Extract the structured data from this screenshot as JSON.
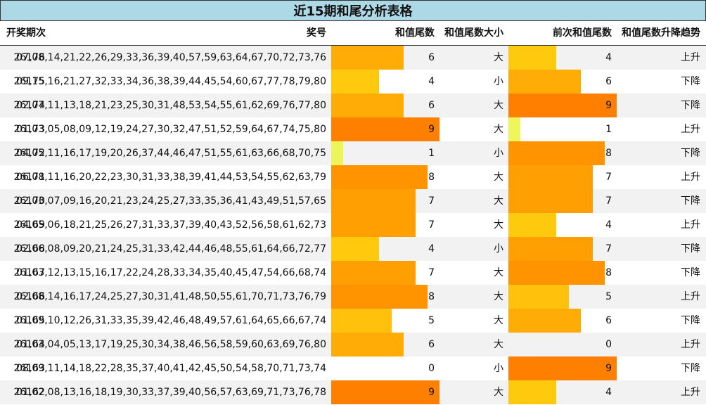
{
  "title": "近15期和尾分析表格",
  "headers": {
    "period": "开奖期次",
    "numbers": "奖号",
    "tail": "和值尾数",
    "size": "和值尾数大小",
    "prev_tail": "前次和值尾数",
    "trend": "和值尾数升降趋势"
  },
  "colors": {
    "0": "#ffffff",
    "1": "#eef55a",
    "4": "#ffc90e",
    "5": "#ffc10c",
    "6": "#ffad06",
    "7": "#ff9f02",
    "8": "#ff9400",
    "9": "#ff8000"
  },
  "rows": [
    {
      "period": "26176",
      "numbers": "07,08,14,21,22,26,29,33,36,39,40,57,59,63,64,67,70,72,73,76",
      "tail": 6,
      "size": "大",
      "prev_tail": 4,
      "trend": "上升"
    },
    {
      "period": "26175",
      "numbers": "09,15,16,21,27,32,33,34,36,38,39,44,45,54,60,67,77,78,79,80",
      "tail": 4,
      "size": "小",
      "prev_tail": 6,
      "trend": "下降"
    },
    {
      "period": "26174",
      "numbers": "02,07,11,13,18,21,23,25,30,31,48,53,54,55,61,62,69,76,77,80",
      "tail": 6,
      "size": "大",
      "prev_tail": 9,
      "trend": "下降"
    },
    {
      "period": "26173",
      "numbers": "01,03,05,08,09,12,19,24,27,30,32,47,51,52,59,64,67,74,75,80",
      "tail": 9,
      "size": "大",
      "prev_tail": 1,
      "trend": "上升"
    },
    {
      "period": "26172",
      "numbers": "04,05,11,16,17,19,20,26,37,44,46,47,51,55,61,63,66,68,70,75",
      "tail": 1,
      "size": "小",
      "prev_tail": 8,
      "trend": "下降"
    },
    {
      "period": "26171",
      "numbers": "06,08,11,16,20,22,23,30,31,33,38,39,41,44,53,54,55,62,63,79",
      "tail": 8,
      "size": "大",
      "prev_tail": 7,
      "trend": "上升"
    },
    {
      "period": "26170",
      "numbers": "02,03,07,09,16,20,21,23,24,25,27,33,35,36,41,43,49,51,57,65",
      "tail": 7,
      "size": "大",
      "prev_tail": 7,
      "trend": "下降"
    },
    {
      "period": "26169",
      "numbers": "04,05,06,18,21,25,26,27,31,33,37,39,40,43,52,56,58,61,62,73",
      "tail": 7,
      "size": "大",
      "prev_tail": 4,
      "trend": "上升"
    },
    {
      "period": "26168",
      "numbers": "02,06,08,09,20,21,24,25,31,33,42,44,46,48,55,61,64,66,72,77",
      "tail": 4,
      "size": "小",
      "prev_tail": 7,
      "trend": "下降"
    },
    {
      "period": "26167",
      "numbers": "01,03,12,13,15,16,17,22,24,28,33,34,35,40,45,47,54,66,68,74",
      "tail": 7,
      "size": "大",
      "prev_tail": 8,
      "trend": "下降"
    },
    {
      "period": "26166",
      "numbers": "02,08,14,16,17,24,25,27,30,31,41,48,50,55,61,70,71,73,76,79",
      "tail": 8,
      "size": "大",
      "prev_tail": 5,
      "trend": "上升"
    },
    {
      "period": "26165",
      "numbers": "01,09,10,12,26,31,33,35,39,42,46,48,49,57,61,64,65,66,67,74",
      "tail": 5,
      "size": "大",
      "prev_tail": 6,
      "trend": "下降"
    },
    {
      "period": "26164",
      "numbers": "01,03,04,05,13,17,19,25,30,34,38,46,56,58,59,60,63,69,76,80",
      "tail": 6,
      "size": "大",
      "prev_tail": 0,
      "trend": "上升"
    },
    {
      "period": "26163",
      "numbers": "08,09,11,14,18,22,28,35,37,40,41,42,45,50,54,58,70,71,73,74",
      "tail": 0,
      "size": "小",
      "prev_tail": 9,
      "trend": "下降"
    },
    {
      "period": "26162",
      "numbers": "01,02,08,13,16,18,19,30,33,37,39,40,56,57,63,69,71,73,76,78",
      "tail": 9,
      "size": "大",
      "prev_tail": 4,
      "trend": "上升"
    }
  ]
}
